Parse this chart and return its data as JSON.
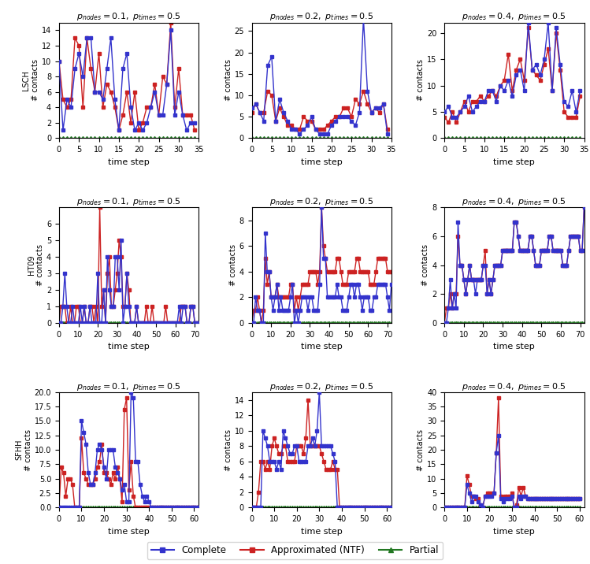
{
  "titles": [
    [
      "$p_{nodes} = 0.1,\\ p_{times} = 0.5$",
      "$p_{nodes} = 0.2,\\ p_{times} = 0.5$",
      "$p_{nodes} = 0.4,\\ p_{times} = 0.5$"
    ],
    [
      "$p_{nodes} = 0.1,\\ p_{times} = 0.5$",
      "$p_{nodes} = 0.2,\\ p_{times} = 0.5$",
      "$p_{nodes} = 0.4,\\ p_{times} = 0.5$"
    ],
    [
      "$p_{nodes} = 0.1,\\ p_{times} = 0.5$",
      "$p_{nodes} = 0.2,\\ p_{times} = 0.5$",
      "$p_{nodes} = 0.4,\\ p_{times} = 0.5$"
    ]
  ],
  "row_labels": [
    "LSCH",
    "HT09",
    "SFHH"
  ],
  "ylabel": "# contacts",
  "xlabel": "time step",
  "complete_color": "#3333cc",
  "approx_color": "#cc2222",
  "partial_color": "#227722",
  "line_width": 1.0,
  "marker_size": 3.0,
  "legend_labels": [
    "Complete",
    "Approximated (NTF)",
    "Partial"
  ],
  "lsch_p01_complete": [
    10,
    1,
    5,
    4,
    9,
    11,
    8,
    13,
    13,
    6,
    6,
    5,
    9,
    13,
    5,
    1,
    9,
    11,
    4,
    1,
    2,
    1,
    2,
    4,
    6,
    3,
    3,
    7,
    14,
    3,
    6,
    3,
    1,
    2,
    2
  ],
  "lsch_p01_approx": [
    10,
    5,
    4,
    5,
    13,
    12,
    4,
    13,
    9,
    6,
    11,
    4,
    7,
    6,
    4,
    1,
    3,
    6,
    2,
    6,
    1,
    2,
    4,
    4,
    7,
    3,
    8,
    7,
    15,
    4,
    9,
    3,
    3,
    3,
    1
  ],
  "lsch_p01_partial": [
    0,
    0,
    0,
    0,
    0,
    0,
    0,
    0,
    0,
    0,
    0,
    0,
    0,
    0,
    0,
    0,
    0,
    0,
    0,
    0,
    0,
    0,
    0,
    0,
    0,
    0,
    0,
    0,
    0,
    0,
    0,
    0,
    0,
    0,
    0
  ],
  "lsch_p02_complete": [
    7,
    8,
    6,
    4,
    17,
    19,
    4,
    9,
    6,
    4,
    2,
    2,
    1,
    2,
    3,
    5,
    2,
    1,
    1,
    1,
    3,
    4,
    5,
    5,
    5,
    4,
    3,
    6,
    28,
    11,
    6,
    7,
    7,
    8,
    1
  ],
  "lsch_p02_approx": [
    6,
    8,
    6,
    6,
    11,
    10,
    4,
    7,
    5,
    3,
    3,
    2,
    2,
    5,
    4,
    4,
    2,
    2,
    2,
    3,
    4,
    5,
    5,
    7,
    7,
    5,
    9,
    8,
    11,
    8,
    6,
    7,
    6,
    8,
    2
  ],
  "lsch_p02_partial": [
    0,
    0,
    0,
    0,
    0,
    0,
    0,
    0,
    0,
    0,
    0,
    0,
    0,
    0,
    0,
    0,
    0,
    0,
    0,
    0,
    0,
    0,
    0,
    0,
    0,
    0,
    0,
    0,
    0,
    0,
    0,
    0,
    0,
    0,
    0
  ],
  "lsch_p04_complete": [
    5,
    6,
    4,
    4,
    5,
    6,
    8,
    5,
    6,
    7,
    7,
    9,
    9,
    7,
    10,
    9,
    11,
    8,
    12,
    13,
    9,
    22,
    13,
    14,
    12,
    15,
    22,
    9,
    21,
    14,
    7,
    6,
    9,
    5,
    9
  ],
  "lsch_p04_approx": [
    4,
    3,
    5,
    3,
    5,
    7,
    5,
    7,
    7,
    8,
    7,
    8,
    9,
    8,
    10,
    11,
    16,
    9,
    13,
    15,
    11,
    21,
    13,
    12,
    11,
    14,
    17,
    9,
    20,
    13,
    5,
    4,
    4,
    4,
    8
  ],
  "lsch_p04_partial": [
    0,
    0,
    0,
    0,
    0,
    0,
    0,
    0,
    0,
    0,
    0,
    0,
    0,
    0,
    0,
    0,
    0,
    0,
    0,
    0,
    0,
    0,
    0,
    0,
    0,
    0,
    0,
    0,
    0,
    0,
    0,
    0,
    0,
    0,
    0
  ],
  "ht09_p01_complete": [
    0,
    0,
    1,
    3,
    1,
    0,
    0,
    1,
    0,
    0,
    0,
    1,
    0,
    1,
    0,
    0,
    1,
    0,
    0,
    0,
    3,
    0,
    0,
    2,
    0,
    4,
    2,
    1,
    1,
    4,
    4,
    2,
    5,
    0,
    1,
    3,
    1,
    0,
    0,
    0,
    1,
    0,
    0,
    0,
    0,
    0,
    0,
    0,
    0,
    0,
    0,
    0,
    0,
    0,
    0,
    0,
    0,
    0,
    0,
    0,
    0,
    0,
    1,
    0,
    1,
    1,
    0,
    0,
    1,
    1,
    0,
    0,
    0
  ],
  "ht09_p01_approx": [
    0,
    1,
    1,
    1,
    0,
    0,
    1,
    0,
    0,
    1,
    1,
    0,
    0,
    1,
    0,
    0,
    1,
    1,
    0,
    1,
    0,
    7,
    1,
    2,
    0,
    3,
    4,
    1,
    1,
    2,
    3,
    5,
    4,
    1,
    1,
    3,
    2,
    0,
    0,
    0,
    1,
    0,
    0,
    0,
    0,
    1,
    0,
    0,
    1,
    0,
    0,
    0,
    0,
    0,
    0,
    1,
    0,
    0,
    0,
    0,
    0,
    0,
    0,
    1,
    1,
    1,
    0,
    0,
    1,
    1,
    0,
    0,
    0
  ],
  "ht09_p01_partial": [
    0,
    0,
    0,
    0,
    0,
    0,
    0,
    0,
    0,
    0,
    0,
    0,
    0,
    0,
    0,
    0,
    0,
    0,
    0,
    0,
    0,
    0,
    0,
    0,
    0,
    0,
    0,
    0,
    0,
    0,
    0,
    0,
    0,
    0,
    0,
    0,
    0,
    0,
    0,
    0,
    0,
    0,
    0,
    0,
    0,
    0,
    0,
    0,
    0,
    0,
    0,
    0,
    0,
    0,
    0,
    0,
    0,
    0,
    0,
    0,
    0,
    0,
    0,
    0,
    0,
    0,
    0,
    0,
    0,
    0,
    0,
    0,
    0
  ],
  "ht09_p02_complete": [
    0,
    0,
    2,
    1,
    1,
    0,
    0,
    7,
    4,
    4,
    2,
    1,
    2,
    3,
    1,
    2,
    1,
    1,
    1,
    1,
    2,
    3,
    0,
    1,
    0,
    1,
    2,
    2,
    2,
    1,
    2,
    2,
    1,
    1,
    1,
    3,
    9,
    5,
    5,
    2,
    2,
    2,
    2,
    2,
    3,
    2,
    2,
    1,
    1,
    1,
    2,
    3,
    3,
    2,
    3,
    3,
    2,
    1,
    2,
    2,
    2,
    1,
    1,
    2,
    2,
    3,
    3,
    3,
    3,
    3,
    2,
    1,
    3
  ],
  "ht09_p02_approx": [
    0,
    1,
    1,
    2,
    1,
    0,
    1,
    5,
    3,
    4,
    2,
    2,
    2,
    3,
    2,
    2,
    2,
    2,
    2,
    2,
    3,
    3,
    1,
    2,
    1,
    2,
    3,
    3,
    3,
    3,
    4,
    4,
    4,
    4,
    3,
    4,
    9,
    6,
    5,
    4,
    4,
    4,
    4,
    4,
    5,
    5,
    4,
    3,
    3,
    3,
    4,
    4,
    4,
    4,
    5,
    5,
    4,
    4,
    4,
    4,
    4,
    3,
    3,
    3,
    4,
    5,
    5,
    5,
    5,
    5,
    4,
    4,
    4
  ],
  "ht09_p02_partial": [
    0,
    0,
    0,
    0,
    0,
    0,
    0,
    0,
    0,
    0,
    0,
    0,
    0,
    0,
    0,
    0,
    0,
    0,
    0,
    0,
    0,
    0,
    0,
    0,
    0,
    0,
    0,
    0,
    0,
    0,
    0,
    0,
    0,
    0,
    0,
    0,
    0,
    0,
    0,
    0,
    0,
    0,
    0,
    0,
    0,
    0,
    0,
    0,
    0,
    0,
    0,
    0,
    0,
    0,
    0,
    0,
    0,
    0,
    0,
    0,
    0,
    0,
    0,
    0,
    0,
    0,
    0,
    0,
    0,
    0,
    0,
    0,
    0
  ],
  "ht09_p04_complete": [
    0,
    0,
    1,
    3,
    1,
    2,
    1,
    7,
    4,
    4,
    3,
    2,
    3,
    4,
    3,
    3,
    2,
    3,
    3,
    3,
    4,
    4,
    2,
    3,
    2,
    3,
    4,
    4,
    4,
    4,
    5,
    5,
    5,
    5,
    5,
    5,
    7,
    7,
    6,
    5,
    5,
    5,
    5,
    5,
    6,
    6,
    5,
    4,
    4,
    4,
    5,
    5,
    5,
    5,
    6,
    6,
    5,
    5,
    5,
    5,
    5,
    4,
    4,
    4,
    5,
    6,
    6,
    6,
    6,
    6,
    5,
    5,
    8
  ],
  "ht09_p04_approx": [
    0,
    1,
    1,
    2,
    1,
    2,
    2,
    6,
    4,
    4,
    3,
    2,
    3,
    4,
    3,
    3,
    3,
    3,
    3,
    3,
    4,
    5,
    2,
    3,
    2,
    3,
    4,
    4,
    4,
    4,
    5,
    5,
    5,
    5,
    5,
    5,
    7,
    7,
    6,
    5,
    5,
    5,
    5,
    5,
    6,
    6,
    5,
    4,
    4,
    4,
    5,
    5,
    5,
    5,
    6,
    6,
    5,
    5,
    5,
    5,
    5,
    4,
    4,
    4,
    5,
    6,
    6,
    6,
    6,
    6,
    5,
    5,
    8
  ],
  "ht09_p04_partial": [
    0,
    0,
    0,
    0,
    0,
    0,
    0,
    0,
    0,
    0,
    0,
    0,
    0,
    0,
    0,
    0,
    0,
    0,
    0,
    0,
    0,
    0,
    0,
    0,
    0,
    0,
    0,
    0,
    0,
    0,
    0,
    0,
    0,
    0,
    0,
    0,
    0,
    0,
    0,
    0,
    0,
    0,
    0,
    0,
    0,
    0,
    0,
    0,
    0,
    0,
    0,
    0,
    0,
    0,
    0,
    0,
    0,
    0,
    0,
    0,
    0,
    0,
    0,
    0,
    0,
    0,
    0,
    0,
    0,
    0,
    0,
    0,
    0
  ],
  "sfhh_p01_complete": [
    0,
    0,
    0,
    0,
    0,
    0,
    0,
    0,
    0,
    0,
    15,
    13,
    11,
    6,
    4,
    4,
    6,
    10,
    11,
    10,
    7,
    5,
    10,
    10,
    10,
    7,
    6,
    5,
    3,
    4,
    1,
    1,
    20,
    19,
    8,
    8,
    4,
    2,
    1,
    2,
    1,
    0,
    0,
    0,
    0,
    0,
    0,
    0,
    0,
    0,
    0,
    0,
    0,
    0,
    0,
    0,
    0,
    0,
    0,
    0,
    0,
    0,
    0
  ],
  "sfhh_p01_approx": [
    0,
    7,
    6,
    2,
    5,
    5,
    4,
    0,
    0,
    0,
    12,
    6,
    5,
    4,
    4,
    4,
    5,
    7,
    8,
    11,
    6,
    6,
    5,
    4,
    6,
    5,
    7,
    5,
    1,
    17,
    19,
    3,
    8,
    2,
    0,
    0,
    0,
    0,
    0,
    0,
    0,
    0,
    0,
    0,
    0,
    0,
    0,
    0,
    0,
    0,
    0,
    0,
    0,
    0,
    0,
    0,
    0,
    0,
    0,
    0,
    0,
    0,
    0
  ],
  "sfhh_p01_partial": [
    0,
    0,
    0,
    0,
    0,
    0,
    0,
    0,
    0,
    0,
    0,
    0,
    0,
    0,
    0,
    0,
    0,
    0,
    0,
    0,
    0,
    0,
    0,
    0,
    0,
    0,
    0,
    0,
    0,
    0,
    0,
    0,
    0,
    0,
    0,
    0,
    0,
    0,
    0,
    0,
    0,
    0,
    0,
    0,
    0,
    0,
    0,
    0,
    0,
    0,
    0,
    0,
    0,
    0,
    0,
    0,
    0,
    0,
    0,
    0,
    0,
    0,
    0
  ],
  "sfhh_p02_complete": [
    0,
    0,
    0,
    0,
    0,
    10,
    9,
    8,
    6,
    6,
    6,
    5,
    6,
    5,
    10,
    9,
    8,
    7,
    7,
    8,
    8,
    6,
    6,
    6,
    6,
    8,
    8,
    9,
    8,
    10,
    15,
    8,
    8,
    8,
    8,
    8,
    7,
    6,
    0,
    0,
    0,
    0,
    0,
    0,
    0,
    0,
    0,
    0,
    0,
    0,
    0,
    0,
    0,
    0,
    0,
    0,
    0,
    0,
    0,
    0,
    0,
    0,
    0,
    0
  ],
  "sfhh_p02_approx": [
    0,
    0,
    0,
    2,
    6,
    6,
    5,
    6,
    5,
    8,
    9,
    8,
    7,
    7,
    8,
    8,
    6,
    6,
    6,
    6,
    8,
    8,
    8,
    7,
    9,
    14,
    8,
    8,
    8,
    8,
    8,
    7,
    6,
    5,
    5,
    5,
    6,
    5,
    5,
    0,
    0,
    0,
    0,
    0,
    0,
    0,
    0,
    0,
    0,
    0,
    0,
    0,
    0,
    0,
    0,
    0,
    0,
    0,
    0,
    0,
    0,
    0,
    0,
    0
  ],
  "sfhh_p02_partial": [
    0,
    0,
    0,
    0,
    0,
    0,
    0,
    0,
    0,
    0,
    0,
    0,
    0,
    0,
    0,
    0,
    0,
    0,
    0,
    0,
    0,
    0,
    0,
    0,
    0,
    0,
    0,
    0,
    0,
    0,
    0,
    0,
    0,
    0,
    0,
    0,
    0,
    0,
    0,
    0,
    0,
    0,
    0,
    0,
    0,
    0,
    0,
    0,
    0,
    0,
    0,
    0,
    0,
    0,
    0,
    0,
    0,
    0,
    0,
    0,
    0,
    0,
    0,
    0
  ],
  "sfhh_p04_complete": [
    0,
    0,
    0,
    0,
    0,
    0,
    0,
    0,
    0,
    0,
    8,
    5,
    2,
    4,
    4,
    2,
    1,
    0,
    4,
    4,
    4,
    4,
    5,
    19,
    25,
    3,
    2,
    3,
    3,
    3,
    4,
    0,
    0,
    4,
    3,
    4,
    4,
    3,
    3,
    3,
    3,
    3,
    3,
    3,
    3,
    3,
    3,
    3,
    3,
    3,
    3,
    3,
    3,
    3,
    3,
    3,
    3,
    3,
    3,
    3,
    3
  ],
  "sfhh_p04_approx": [
    0,
    0,
    0,
    0,
    0,
    0,
    0,
    0,
    0,
    0,
    11,
    8,
    4,
    4,
    3,
    3,
    1,
    0,
    4,
    5,
    5,
    5,
    5,
    19,
    38,
    4,
    3,
    4,
    4,
    4,
    5,
    0,
    1,
    7,
    4,
    7,
    4,
    3,
    3,
    3,
    3,
    3,
    3,
    3,
    3,
    3,
    3,
    3,
    3,
    3,
    3,
    3,
    3,
    3,
    3,
    3,
    3,
    3,
    3,
    3,
    3
  ],
  "sfhh_p04_partial": [
    0,
    0,
    0,
    0,
    0,
    0,
    0,
    0,
    0,
    0,
    0,
    0,
    0,
    0,
    0,
    0,
    0,
    0,
    0,
    0,
    0,
    0,
    0,
    0,
    0,
    0,
    0,
    0,
    0,
    0,
    0,
    0,
    0,
    0,
    0,
    0,
    0,
    0,
    0,
    0,
    0,
    0,
    0,
    0,
    0,
    0,
    0,
    0,
    0,
    0,
    0,
    0,
    0,
    0,
    0,
    0,
    0,
    0,
    0,
    0,
    0
  ],
  "lsch_xlim": [
    0,
    34
  ],
  "ht09_xlim": [
    0,
    72
  ],
  "sfhh_xlim": [
    0,
    62
  ],
  "lsch_xticks": [
    0,
    5,
    10,
    15,
    20,
    25,
    30,
    35
  ],
  "ht09_xticks": [
    0,
    10,
    20,
    30,
    40,
    50,
    60,
    70
  ],
  "sfhh_xticks": [
    0,
    10,
    20,
    30,
    40,
    50,
    60
  ],
  "lsch_p01_ylim": [
    0,
    15
  ],
  "lsch_p01_yticks": [
    0,
    2,
    4,
    6,
    8,
    10,
    12,
    14
  ],
  "lsch_p02_ylim": [
    0,
    27
  ],
  "lsch_p02_yticks": [
    0,
    5,
    10,
    15,
    20,
    25
  ],
  "lsch_p04_ylim": [
    0,
    22
  ],
  "lsch_p04_yticks": [
    0,
    5,
    10,
    15,
    20
  ],
  "ht09_p01_ylim": [
    0,
    7
  ],
  "ht09_p01_yticks": [
    0,
    1,
    2,
    3,
    4,
    5,
    6
  ],
  "ht09_p02_ylim": [
    0,
    9
  ],
  "ht09_p02_yticks": [
    0,
    2,
    4,
    6,
    8
  ],
  "ht09_p04_ylim": [
    0,
    8
  ],
  "ht09_p04_yticks": [
    0,
    2,
    4,
    6,
    8
  ],
  "sfhh_p01_ylim": [
    0,
    20
  ],
  "sfhh_p01_yticks": [
    0.0,
    2.5,
    5.0,
    7.5,
    10.0,
    12.5,
    15.0,
    17.5,
    20.0
  ],
  "sfhh_p02_ylim": [
    0,
    15
  ],
  "sfhh_p02_yticks": [
    0,
    2,
    4,
    6,
    8,
    10,
    12,
    14
  ],
  "sfhh_p04_ylim": [
    0,
    40
  ],
  "sfhh_p04_yticks": [
    0,
    5,
    10,
    15,
    20,
    25,
    30,
    35,
    40
  ]
}
